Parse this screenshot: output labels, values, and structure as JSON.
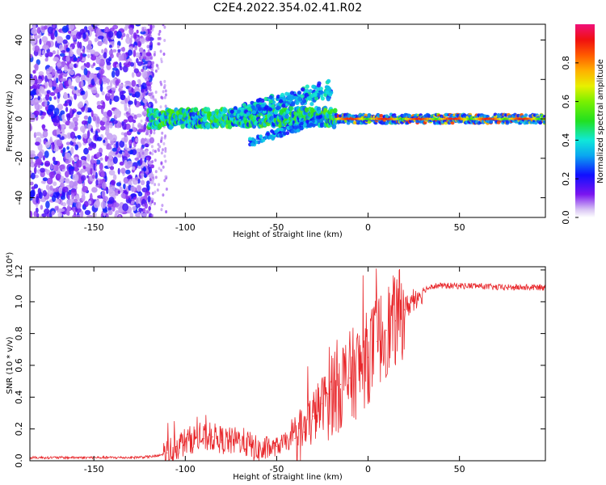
{
  "title": "C2E4.2022.354.02.41.R02",
  "chart_data": [
    {
      "type": "heatmap",
      "xlabel": "Height of straight line (km)",
      "ylabel": "Frequency (Hz)",
      "xlim": [
        -185,
        97
      ],
      "ylim": [
        -50,
        48
      ],
      "xticks": [
        -150,
        -100,
        -50,
        0,
        50
      ],
      "xtick_labels": [
        "-150",
        "-100",
        "-50",
        "0",
        "50"
      ],
      "yticks": [
        -40,
        -20,
        0,
        20,
        40
      ],
      "ytick_labels": [
        "-40",
        "-20",
        "0",
        "20",
        "40"
      ],
      "colorbar": {
        "label": "Normalized spectral amplitude",
        "range": [
          0.0,
          1.0
        ],
        "ticks": [
          0.0,
          0.2,
          0.4,
          0.6,
          0.8
        ],
        "tick_labels": [
          "0.0",
          "0.2",
          "0.4",
          "0.6",
          "0.8"
        ],
        "colormap": "rainbow (violet to magenta)"
      },
      "features": [
        {
          "region": "noise",
          "x_range": [
            -185,
            -122
          ],
          "y_range": [
            -50,
            48
          ],
          "amplitude": [
            0.05,
            0.25
          ]
        },
        {
          "region": "main-trace",
          "x_range": [
            -120,
            97
          ],
          "frequency_hz": 0,
          "amplitude": [
            0.3,
            0.95
          ]
        },
        {
          "region": "upper-branch",
          "x_range": [
            -75,
            -20
          ],
          "frequency_hz": [
            3,
            18
          ],
          "amplitude": [
            0.2,
            0.45
          ]
        },
        {
          "region": "lower-branch",
          "x_range": [
            -65,
            -25
          ],
          "frequency_hz": [
            -12,
            0
          ],
          "amplitude": [
            0.2,
            0.4
          ]
        }
      ]
    },
    {
      "type": "line",
      "xlabel": "Height of straight line (km)",
      "ylabel": "SNR (10 * v/v)",
      "exponent_label": "(x10⁴)",
      "xlim": [
        -185,
        97
      ],
      "ylim": [
        0,
        1.22
      ],
      "xticks": [
        -150,
        -100,
        -50,
        0,
        50
      ],
      "xtick_labels": [
        "-150",
        "-100",
        "-50",
        "0",
        "50"
      ],
      "yticks": [
        0,
        0.2,
        0.4,
        0.6,
        0.8,
        1.0,
        1.2
      ],
      "ytick_labels": [
        "0.0",
        "0.2",
        "0.4",
        "0.6",
        "0.8",
        "1.0",
        "1.2"
      ],
      "series": [
        {
          "color": "#e8272b",
          "x": [
            -185,
            -170,
            -150,
            -130,
            -120,
            -115,
            -110,
            -105,
            -100,
            -95,
            -90,
            -85,
            -80,
            -75,
            -70,
            -65,
            -60,
            -55,
            -50,
            -45,
            -40,
            -35,
            -30,
            -25,
            -22,
            -20,
            -15,
            -10,
            -5,
            0,
            5,
            10,
            15,
            20,
            25,
            30,
            35,
            40,
            50,
            60,
            70,
            80,
            90,
            97
          ],
          "values": [
            0.02,
            0.02,
            0.02,
            0.02,
            0.025,
            0.03,
            0.05,
            0.09,
            0.12,
            0.14,
            0.14,
            0.15,
            0.13,
            0.12,
            0.13,
            0.1,
            0.06,
            0.07,
            0.09,
            0.12,
            0.14,
            0.18,
            0.28,
            0.36,
            0.42,
            0.45,
            0.48,
            0.52,
            0.58,
            0.65,
            0.75,
            0.82,
            0.88,
            0.95,
            1.02,
            1.07,
            1.1,
            1.1,
            1.1,
            1.1,
            1.09,
            1.09,
            1.09,
            1.09
          ]
        }
      ]
    }
  ]
}
